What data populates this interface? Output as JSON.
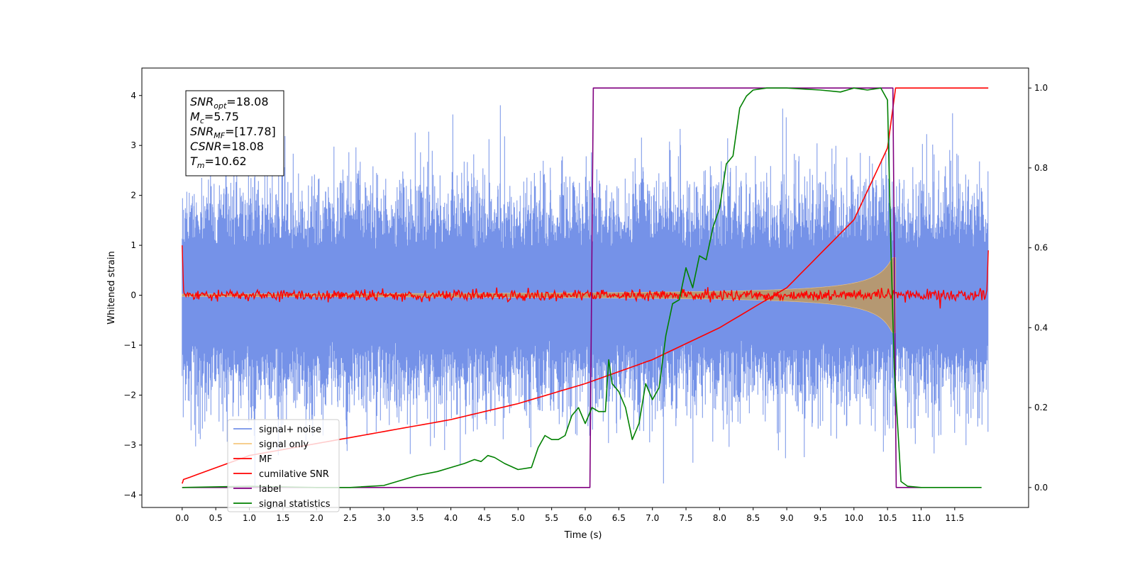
{
  "chart_data": {
    "type": "line",
    "xlabel": "Time (s)",
    "ylabel": "Whitened strain",
    "xlim": [
      -0.6,
      12.6
    ],
    "ylim": [
      -4.25,
      4.55
    ],
    "ylim_right": [
      -0.05,
      1.05
    ],
    "x_ticks": [
      0.0,
      0.5,
      1.0,
      1.5,
      2.0,
      2.5,
      3.0,
      3.5,
      4.0,
      4.5,
      5.0,
      5.5,
      6.0,
      6.5,
      7.0,
      7.5,
      8.0,
      8.5,
      9.0,
      9.5,
      10.0,
      10.5,
      11.0,
      11.5
    ],
    "x_tick_labels": [
      "0.0",
      "0.5",
      "1.0",
      "1.5",
      "2.0",
      "2.5",
      "3.0",
      "3.5",
      "4.0",
      "4.5",
      "5.0",
      "5.5",
      "6.0",
      "6.5",
      "7.0",
      "7.5",
      "8.0",
      "8.5",
      "9.0",
      "9.5",
      "10.0",
      "10.5",
      "11.0",
      "11.5"
    ],
    "y_ticks_left": [
      -4,
      -3,
      -2,
      -1,
      0,
      1,
      2,
      3,
      4
    ],
    "y_tick_labels_left": [
      "−4",
      "−3",
      "−2",
      "−1",
      "0",
      "1",
      "2",
      "3",
      "4"
    ],
    "y_ticks_right": [
      0.0,
      0.2,
      0.4,
      0.6,
      0.8,
      1.0
    ],
    "y_tick_labels_right": [
      "0.0",
      "0.2",
      "0.4",
      "0.6",
      "0.8",
      "1.0"
    ],
    "grid": false,
    "legend_position": "lower-left",
    "series": [
      {
        "name": "signal+ noise",
        "axis": "left",
        "color": "#7592e8",
        "style": "noise band",
        "approx_range": [
          -4.0,
          4.2
        ],
        "x_range": [
          0.0,
          12.0
        ]
      },
      {
        "name": "signal only",
        "axis": "left",
        "color": "#f5c77e",
        "style": "chirp",
        "x_range": [
          0.0,
          10.62
        ],
        "amplitude_start": 0.02,
        "amplitude_end": 0.95
      },
      {
        "name": "MF",
        "axis": "left",
        "color": "#ff0000",
        "style": "noise band",
        "approx_range": [
          -0.15,
          0.15
        ],
        "edge_values": [
          1.0,
          0.9
        ]
      },
      {
        "name": "cumilative SNR",
        "axis": "right",
        "color": "#ff0000",
        "x": [
          0.0,
          0.02,
          1.0,
          2.0,
          3.0,
          4.0,
          5.0,
          6.0,
          7.0,
          8.0,
          9.0,
          10.0,
          10.5,
          10.62,
          12.0
        ],
        "y": [
          0.01,
          0.02,
          0.08,
          0.11,
          0.14,
          0.17,
          0.21,
          0.26,
          0.32,
          0.4,
          0.5,
          0.67,
          0.85,
          1.0,
          1.0
        ]
      },
      {
        "name": "label",
        "axis": "right",
        "color": "#800080",
        "x": [
          0.0,
          6.07,
          6.12,
          10.58,
          10.63,
          11.0
        ],
        "y": [
          0.0,
          0.0,
          1.0,
          1.0,
          0.0,
          0.0
        ]
      },
      {
        "name": "signal statistics",
        "axis": "right",
        "color": "#008000",
        "x": [
          0.0,
          1.0,
          2.0,
          2.5,
          3.0,
          3.2,
          3.5,
          3.8,
          4.0,
          4.2,
          4.35,
          4.45,
          4.55,
          4.65,
          4.8,
          5.0,
          5.2,
          5.3,
          5.4,
          5.5,
          5.6,
          5.7,
          5.8,
          5.9,
          6.0,
          6.1,
          6.2,
          6.3,
          6.35,
          6.4,
          6.5,
          6.6,
          6.7,
          6.8,
          6.9,
          7.0,
          7.1,
          7.2,
          7.3,
          7.4,
          7.5,
          7.6,
          7.7,
          7.8,
          7.9,
          8.0,
          8.1,
          8.2,
          8.3,
          8.4,
          8.5,
          8.7,
          9.0,
          9.5,
          9.8,
          10.0,
          10.2,
          10.4,
          10.5,
          10.55,
          10.6,
          10.7,
          10.8,
          11.0,
          11.5,
          11.9
        ],
        "y": [
          0.0,
          0.003,
          0.0,
          0.0,
          0.005,
          0.015,
          0.03,
          0.04,
          0.05,
          0.06,
          0.07,
          0.065,
          0.08,
          0.075,
          0.06,
          0.045,
          0.05,
          0.1,
          0.13,
          0.12,
          0.12,
          0.13,
          0.18,
          0.2,
          0.16,
          0.2,
          0.19,
          0.19,
          0.32,
          0.26,
          0.24,
          0.2,
          0.12,
          0.16,
          0.26,
          0.22,
          0.25,
          0.38,
          0.46,
          0.47,
          0.55,
          0.5,
          0.58,
          0.57,
          0.65,
          0.7,
          0.81,
          0.83,
          0.95,
          0.98,
          0.995,
          1.0,
          1.0,
          0.995,
          0.99,
          1.0,
          0.995,
          1.0,
          0.97,
          0.6,
          0.3,
          0.015,
          0.003,
          0.0,
          0.0,
          0.0
        ]
      }
    ],
    "legend_entries": [
      "signal+ noise",
      "signal only",
      "MF",
      "cumilative SNR",
      "label",
      "signal statistics"
    ],
    "annotation": {
      "lines": [
        {
          "sym": "SNR",
          "sub": "opt",
          "val": "=18.08"
        },
        {
          "sym": "M",
          "sub": "c",
          "val": "=5.75"
        },
        {
          "sym": "SNR",
          "sub": "MF",
          "val": "=[17.78]"
        },
        {
          "sym": "CSNR",
          "sub": "",
          "val": "=18.08"
        },
        {
          "sym": "T",
          "sub": "m",
          "val": "=10.62"
        }
      ]
    }
  }
}
